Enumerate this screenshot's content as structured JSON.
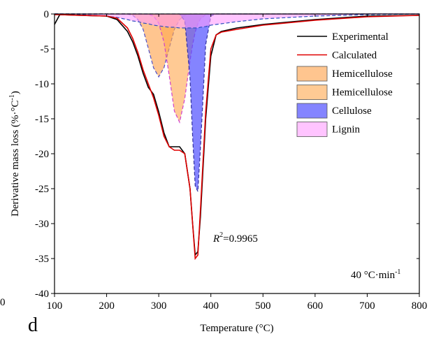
{
  "chart_data": {
    "type": "line",
    "panel_label": "d",
    "edge_fragment": "0",
    "x_label": "Temperature (°C)",
    "y_label": [
      "Derivative mass loss (%·°C",
      "-1",
      ")"
    ],
    "r2_note": [
      "R",
      "2",
      "=0.9965"
    ],
    "rate_note": [
      "40 °C·min",
      "-1"
    ],
    "xlim": [
      100,
      800
    ],
    "xticks": [
      100,
      200,
      300,
      400,
      500,
      600,
      700,
      800
    ],
    "ylim": [
      -40,
      0
    ],
    "yticks": [
      0,
      -5,
      -10,
      -15,
      -20,
      -25,
      -30,
      -35,
      -40
    ],
    "legend": "upper right",
    "x": [
      100,
      110,
      150,
      200,
      220,
      240,
      250,
      260,
      270,
      280,
      290,
      300,
      310,
      320,
      330,
      340,
      350,
      360,
      365,
      370,
      375,
      380,
      390,
      400,
      410,
      420,
      450,
      500,
      600,
      700,
      800
    ],
    "series": [
      {
        "name": "Experimental",
        "kind": "line",
        "color": "#000000",
        "values": [
          -1.5,
          -0.1,
          -0.2,
          -0.3,
          -0.8,
          -2.5,
          -4,
          -6,
          -8.5,
          -10.5,
          -11.5,
          -14,
          -17,
          -19,
          -19,
          -19,
          -20,
          -25,
          -30,
          -34.5,
          -34,
          -29,
          -15,
          -6,
          -3,
          -2.5,
          -2,
          -1.5,
          -0.8,
          -0.3,
          -0.2
        ]
      },
      {
        "name": "Calculated",
        "kind": "line",
        "color": "#e00000",
        "values": [
          -0.1,
          -0.1,
          -0.2,
          -0.3,
          -0.6,
          -2,
          -3.5,
          -5.5,
          -8,
          -10,
          -12,
          -14.5,
          -17.5,
          -19,
          -19.5,
          -19.5,
          -20,
          -25,
          -30,
          -35,
          -34.5,
          -28,
          -14,
          -5,
          -3,
          -2.6,
          -2.2,
          -1.6,
          -0.9,
          -0.4,
          -0.2
        ]
      },
      {
        "name": "Hemicellulose",
        "kind": "area",
        "color": "#ff9f45",
        "line_color": "#5050c8",
        "fill_opacity": 0.6,
        "values": [
          0,
          0,
          0,
          0,
          0,
          0,
          -0.2,
          -0.8,
          -2.2,
          -4.9,
          -7.7,
          -9,
          -7.7,
          -4.9,
          -2.2,
          -0.8,
          -0.2,
          0,
          0,
          0,
          0,
          0,
          0,
          0,
          0,
          0,
          0,
          0,
          0,
          0,
          0
        ]
      },
      {
        "name": "Hemicellulose",
        "kind": "area",
        "color": "#ffa64d",
        "line_color": "#d040d0",
        "fill_opacity": 0.6,
        "values": [
          0,
          0,
          0,
          0,
          0,
          0,
          0,
          0,
          0,
          -0.05,
          -0.3,
          -1.3,
          -4,
          -8.8,
          -13.9,
          -15.5,
          -12.1,
          -6.7,
          -4.4,
          -2.6,
          -1.4,
          -0.7,
          -0.1,
          0,
          0,
          0,
          0,
          0,
          0,
          0,
          0
        ]
      },
      {
        "name": "Cellulose",
        "kind": "area",
        "color": "#5050ff",
        "line_color": "#3030a0",
        "fill_opacity": 0.7,
        "values": [
          0,
          0,
          0,
          0,
          0,
          0,
          0,
          0,
          0,
          0,
          0,
          0,
          0,
          0,
          0,
          0,
          -1,
          -9.2,
          -17.5,
          -24.6,
          -25.4,
          -19.2,
          -4.4,
          -0.3,
          0,
          0,
          0,
          0,
          0,
          0,
          0
        ]
      },
      {
        "name": "Lignin",
        "kind": "area",
        "color": "#ff9cff",
        "line_color": "#3050c0",
        "fill_opacity": 0.6,
        "values": [
          0,
          0,
          -0.1,
          -0.3,
          -0.5,
          -0.8,
          -1,
          -1.1,
          -1.3,
          -1.4,
          -1.6,
          -1.7,
          -1.8,
          -1.9,
          -1.9,
          -2,
          -2,
          -2,
          -2,
          -2,
          -2,
          -1.9,
          -1.8,
          -1.6,
          -1.5,
          -1.4,
          -1.1,
          -0.7,
          -0.3,
          -0.1,
          0
        ]
      }
    ]
  }
}
